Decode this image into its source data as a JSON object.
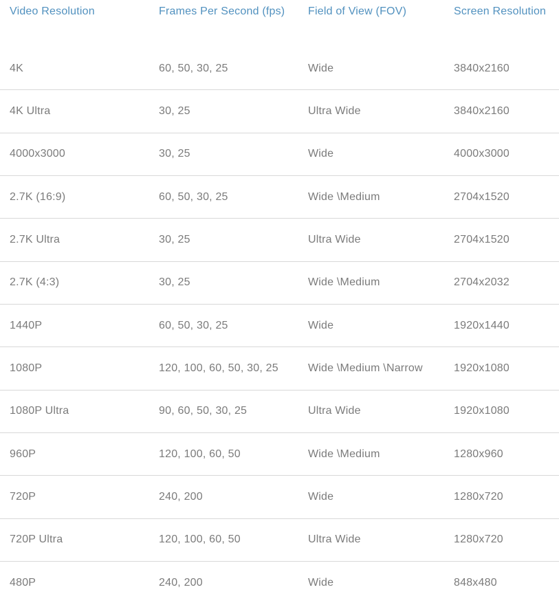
{
  "colors": {
    "header_text": "#5191bf",
    "body_text": "#7b7b7b",
    "divider": "#d8d8d8",
    "background": "#ffffff"
  },
  "table": {
    "columns": [
      {
        "key": "resolution",
        "label": "Video Resolution"
      },
      {
        "key": "fps",
        "label": "Frames Per Second (fps)"
      },
      {
        "key": "fov",
        "label": "Field of View (FOV)"
      },
      {
        "key": "screen",
        "label": "Screen Resolution"
      }
    ],
    "rows": [
      {
        "resolution": "4K",
        "fps": "60, 50, 30, 25",
        "fov": "Wide",
        "screen": "3840x2160"
      },
      {
        "resolution": "4K Ultra",
        "fps": "30, 25",
        "fov": "Ultra Wide",
        "screen": "3840x2160"
      },
      {
        "resolution": "4000x3000",
        "fps": "30, 25",
        "fov": "Wide",
        "screen": "4000x3000"
      },
      {
        "resolution": "2.7K (16:9)",
        "fps": "60, 50, 30, 25",
        "fov": "Wide \\Medium",
        "screen": "2704x1520"
      },
      {
        "resolution": "2.7K Ultra",
        "fps": "30, 25",
        "fov": "Ultra Wide",
        "screen": "2704x1520"
      },
      {
        "resolution": "2.7K (4:3)",
        "fps": "30, 25",
        "fov": "Wide \\Medium",
        "screen": "2704x2032"
      },
      {
        "resolution": "1440P",
        "fps": "60, 50, 30, 25",
        "fov": "Wide",
        "screen": "1920x1440"
      },
      {
        "resolution": "1080P",
        "fps": "120, 100, 60, 50, 30, 25",
        "fov": "Wide \\Medium \\Narrow",
        "screen": "1920x1080"
      },
      {
        "resolution": "1080P Ultra",
        "fps": "90, 60, 50, 30, 25",
        "fov": "Ultra Wide",
        "screen": "1920x1080"
      },
      {
        "resolution": "960P",
        "fps": "120, 100, 60, 50",
        "fov": "Wide \\Medium",
        "screen": "1280x960"
      },
      {
        "resolution": "720P",
        "fps": "240, 200",
        "fov": "Wide",
        "screen": "1280x720"
      },
      {
        "resolution": "720P Ultra",
        "fps": "120, 100, 60, 50",
        "fov": "Ultra Wide",
        "screen": "1280x720"
      },
      {
        "resolution": "480P",
        "fps": "240, 200",
        "fov": "Wide",
        "screen": "848x480"
      }
    ]
  }
}
